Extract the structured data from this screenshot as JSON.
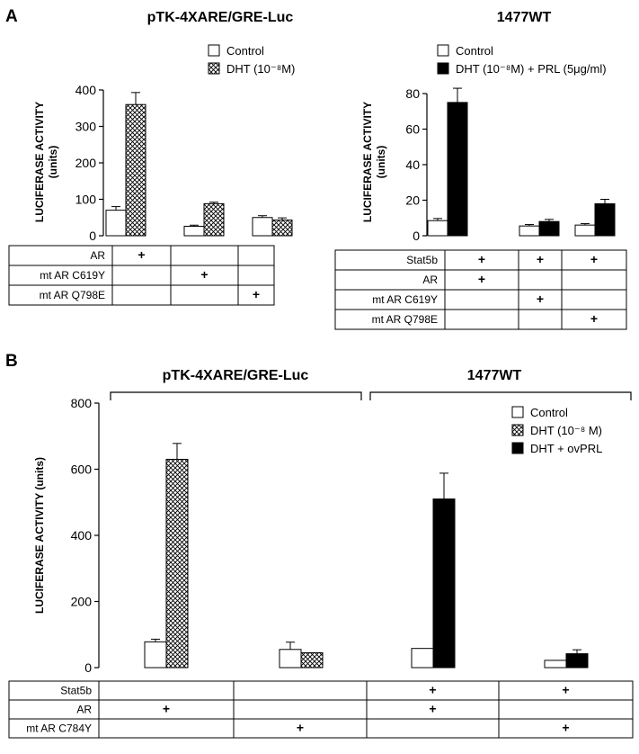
{
  "panel_labels": {
    "a": "A",
    "b": "B"
  },
  "patterns": {
    "control": "white",
    "dht": "crosshatch",
    "dht_prl": "black"
  },
  "chart_data": [
    {
      "id": "A-left",
      "type": "bar",
      "title": "pTK-4XARE/GRE-Luc",
      "ylabel_line1": "LUCIFERASE ACTIVITY",
      "ylabel_line2": "(units)",
      "ylim": [
        0,
        400
      ],
      "yticks": [
        0,
        100,
        200,
        300,
        400
      ],
      "legend_position": "top-right",
      "series": [
        {
          "name": "Control",
          "pattern": "white",
          "values": [
            70,
            26,
            50
          ],
          "errors": [
            10,
            3,
            5
          ]
        },
        {
          "name": "DHT (10⁻⁸M)",
          "pattern": "crosshatch",
          "values": [
            360,
            88,
            43
          ],
          "errors": [
            33,
            4,
            6
          ]
        }
      ],
      "table": {
        "rows": [
          "AR",
          "mt AR C619Y",
          "mt AR Q798E"
        ],
        "marks": [
          [
            0
          ],
          [
            1
          ],
          [
            2
          ]
        ],
        "mark": "+"
      }
    },
    {
      "id": "A-right",
      "type": "bar",
      "title": "1477WT",
      "ylabel_line1": "LUCIFERASE ACTIVITY",
      "ylabel_line2": "(units)",
      "ylim": [
        0,
        80
      ],
      "yticks": [
        0,
        20,
        40,
        60,
        80
      ],
      "legend_position": "top-right",
      "series": [
        {
          "name": "Control",
          "pattern": "white",
          "values": [
            8.5,
            5.5,
            6
          ],
          "errors": [
            1.2,
            0.8,
            0.8
          ]
        },
        {
          "name": "DHT (10⁻⁸M) + PRL (5μg/ml)",
          "pattern": "black",
          "values": [
            75,
            8,
            18
          ],
          "errors": [
            8,
            1.2,
            2.5
          ]
        }
      ],
      "table": {
        "rows": [
          "Stat5b",
          "AR",
          "mt AR C619Y",
          "mt AR Q798E"
        ],
        "marks": [
          [
            0,
            1,
            2
          ],
          [
            0
          ],
          [
            1
          ],
          [
            2
          ]
        ],
        "mark": "+"
      }
    },
    {
      "id": "B",
      "type": "bar",
      "ylabel": "LUCIFERASE ACTIVITY (units)",
      "ylim": [
        0,
        800
      ],
      "yticks": [
        0,
        200,
        400,
        600,
        800
      ],
      "legend_position": "top-right",
      "group_labels": [
        "pTK-4XARE/GRE-Luc",
        "1477WT"
      ],
      "series": [
        {
          "name": "Control",
          "pattern": "white",
          "values": [
            78,
            55,
            58,
            22
          ],
          "errors": [
            8,
            22,
            0,
            0
          ]
        },
        {
          "name": "DHT (10⁻⁸ M)",
          "pattern": "crosshatch",
          "values": [
            630,
            45,
            null,
            null
          ],
          "errors": [
            48,
            0,
            0,
            0
          ]
        },
        {
          "name": "DHT + ovPRL",
          "pattern": "black",
          "values": [
            null,
            null,
            510,
            42
          ],
          "errors": [
            0,
            0,
            78,
            12
          ]
        }
      ],
      "table": {
        "rows": [
          "Stat5b",
          "AR",
          "mt AR C784Y"
        ],
        "marks": [
          [
            2,
            3
          ],
          [
            0,
            2
          ],
          [
            1,
            3
          ]
        ],
        "mark": "+"
      }
    }
  ]
}
